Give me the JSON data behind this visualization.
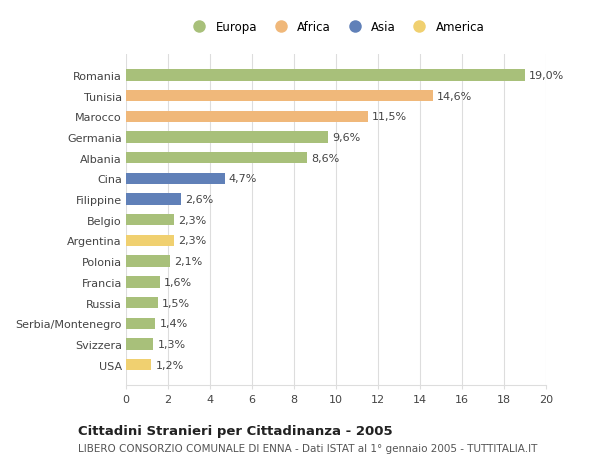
{
  "countries": [
    "Romania",
    "Tunisia",
    "Marocco",
    "Germania",
    "Albania",
    "Cina",
    "Filippine",
    "Belgio",
    "Argentina",
    "Polonia",
    "Francia",
    "Russia",
    "Serbia/Montenegro",
    "Svizzera",
    "USA"
  ],
  "values": [
    19.0,
    14.6,
    11.5,
    9.6,
    8.6,
    4.7,
    2.6,
    2.3,
    2.3,
    2.1,
    1.6,
    1.5,
    1.4,
    1.3,
    1.2
  ],
  "labels": [
    "19,0%",
    "14,6%",
    "11,5%",
    "9,6%",
    "8,6%",
    "4,7%",
    "2,6%",
    "2,3%",
    "2,3%",
    "2,1%",
    "1,6%",
    "1,5%",
    "1,4%",
    "1,3%",
    "1,2%"
  ],
  "continents": [
    "Europa",
    "Africa",
    "Africa",
    "Europa",
    "Europa",
    "Asia",
    "Asia",
    "Europa",
    "America",
    "Europa",
    "Europa",
    "Europa",
    "Europa",
    "Europa",
    "America"
  ],
  "colors": {
    "Europa": "#a8c07a",
    "Africa": "#f0b87a",
    "Asia": "#6080b8",
    "America": "#f0d070"
  },
  "legend_order": [
    "Europa",
    "Africa",
    "Asia",
    "America"
  ],
  "xlim": [
    0,
    20
  ],
  "xticks": [
    0,
    2,
    4,
    6,
    8,
    10,
    12,
    14,
    16,
    18,
    20
  ],
  "title": "Cittadini Stranieri per Cittadinanza - 2005",
  "subtitle": "LIBERO CONSORZIO COMUNALE DI ENNA - Dati ISTAT al 1° gennaio 2005 - TUTTITALIA.IT",
  "background_color": "#ffffff",
  "grid_color": "#dddddd",
  "bar_height": 0.55,
  "label_fontsize": 8,
  "tick_fontsize": 8,
  "title_fontsize": 9.5,
  "subtitle_fontsize": 7.5
}
